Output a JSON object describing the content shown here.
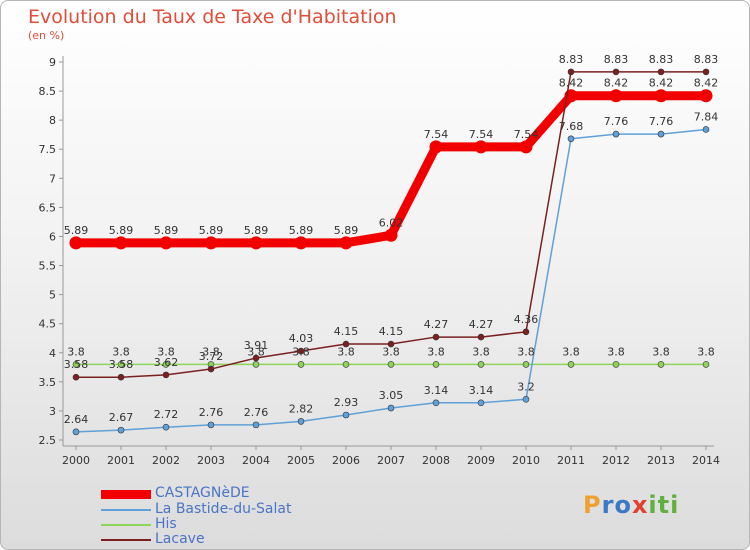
{
  "header": {
    "title": "Evolution du Taux de Taxe d'Habitation",
    "unit": "(en %)"
  },
  "brand": {
    "logo_text": "Proxiti"
  },
  "colors": {
    "title": "#e24d39",
    "legend_text": "#4a74c6",
    "logo_p": "#f0a030",
    "logo_ro": "#3a78c8",
    "logo_x": "#e04030",
    "logo_iti": "#60b040"
  },
  "chart_data": {
    "type": "line",
    "x": [
      2000,
      2001,
      2002,
      2003,
      2004,
      2005,
      2006,
      2007,
      2008,
      2009,
      2010,
      2011,
      2012,
      2013,
      2014
    ],
    "xlabels": [
      "2000",
      "2001",
      "2002",
      "2003",
      "2004",
      "2005",
      "2006",
      "2007",
      "2008",
      "2009",
      "2010",
      "2011",
      "2012",
      "2013",
      "2014"
    ],
    "ylim": [
      2.5,
      9
    ],
    "yticks": [
      2.5,
      3,
      3.5,
      4,
      4.5,
      5,
      5.5,
      6,
      6.5,
      7,
      7.5,
      8,
      8.5,
      9
    ],
    "yticklabels": [
      "2.5",
      "3",
      "3.5",
      "4",
      "4.5",
      "5",
      "5.5",
      "6",
      "6.5",
      "7",
      "7.5",
      "8",
      "8.5",
      "9"
    ],
    "grid": false,
    "legend_position": "bottom-left",
    "series": [
      {
        "name": "CASTAGNèDE",
        "color": "#f20000",
        "width": 9,
        "values": [
          5.89,
          5.89,
          5.89,
          5.89,
          5.89,
          5.89,
          5.89,
          6.02,
          7.54,
          7.54,
          7.54,
          8.42,
          8.42,
          8.42,
          8.42
        ],
        "labels": [
          "5.89",
          "5.89",
          "5.89",
          "5.89",
          "5.89",
          "5.89",
          "5.89",
          "6.02",
          "7.54",
          "7.54",
          "7.54",
          "8.42",
          "8.42",
          "8.42",
          "8.42"
        ]
      },
      {
        "name": "La Bastide-du-Salat",
        "color": "#5fa0d8",
        "width": 1.5,
        "values": [
          2.64,
          2.67,
          2.72,
          2.76,
          2.76,
          2.82,
          2.93,
          3.05,
          3.14,
          3.14,
          3.2,
          7.68,
          7.76,
          7.76,
          7.84
        ],
        "labels": [
          "2.64",
          "2.67",
          "2.72",
          "2.76",
          "2.76",
          "2.82",
          "2.93",
          "3.05",
          "3.14",
          "3.14",
          "3.2",
          "7.68",
          "7.76",
          "7.76",
          "7.84"
        ]
      },
      {
        "name": "His",
        "color": "#8fd45a",
        "width": 1.5,
        "values": [
          3.8,
          3.8,
          3.8,
          3.8,
          3.8,
          3.8,
          3.8,
          3.8,
          3.8,
          3.8,
          3.8,
          3.8,
          3.8,
          3.8,
          3.8
        ],
        "labels": [
          "3.8",
          "3.8",
          "3.8",
          "3.8",
          "3.8",
          "3.8",
          "3.8",
          "3.8",
          "3.8",
          "3.8",
          "3.8",
          "3.8",
          "3.8",
          "3.8",
          "3.8"
        ]
      },
      {
        "name": "Lacave",
        "color": "#7a2020",
        "width": 1.5,
        "values": [
          3.58,
          3.58,
          3.62,
          3.72,
          3.91,
          4.03,
          4.15,
          4.15,
          4.27,
          4.27,
          4.36,
          8.83,
          8.83,
          8.83,
          8.83
        ],
        "labels": [
          "3.58",
          "3.58",
          "3.62",
          "3.72",
          "3.91",
          "4.03",
          "4.15",
          "4.15",
          "4.27",
          "4.27",
          "4.36",
          "8.83",
          "8.83",
          "8.83",
          "8.83"
        ]
      }
    ]
  }
}
